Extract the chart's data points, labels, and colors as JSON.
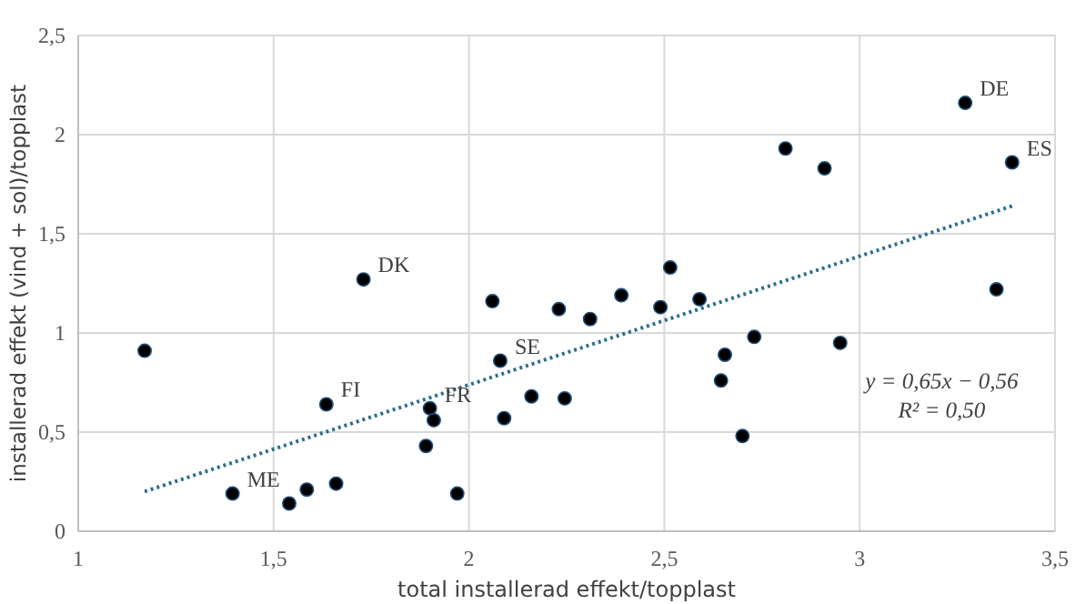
{
  "chart_data": {
    "type": "scatter",
    "xlabel": "total installerad effekt/topplast",
    "ylabel": "installerad effekt (vind + sol)/topplast",
    "xlim": [
      1,
      3.5
    ],
    "xticks": [
      1,
      {
        "value": 1.5,
        "label": "1,5"
      },
      2,
      {
        "value": 2.5,
        "label": "2,5"
      },
      3,
      {
        "value": 3.5,
        "label": "3,5"
      }
    ],
    "ylim": [
      0,
      2.5
    ],
    "yticks": [
      0,
      {
        "value": 0.5,
        "label": "0,5"
      },
      1,
      {
        "value": 1.5,
        "label": "1,5"
      },
      2,
      {
        "value": 2.5,
        "label": "2,5"
      }
    ],
    "grid": true,
    "series": [
      {
        "color": "#000000",
        "marker": "circle",
        "x": [
          1.17,
          1.73,
          2.06,
          2.23,
          2.08,
          1.635,
          1.9,
          1.91,
          1.89,
          1.395,
          1.54,
          1.585,
          1.66,
          1.97,
          2.16,
          2.245,
          2.09,
          2.31,
          2.39,
          2.49,
          2.59,
          2.515,
          2.73,
          2.655,
          2.645,
          2.7,
          2.95,
          3.35,
          2.81,
          2.91,
          3.27,
          3.39
        ],
        "values": [
          0.91,
          1.27,
          1.16,
          1.12,
          0.86,
          0.64,
          0.62,
          0.56,
          0.43,
          0.19,
          0.14,
          0.21,
          0.24,
          0.19,
          0.68,
          0.67,
          0.57,
          1.07,
          1.19,
          1.13,
          1.17,
          1.33,
          0.98,
          0.89,
          0.76,
          0.48,
          0.95,
          1.22,
          1.93,
          1.83,
          2.16,
          1.86
        ]
      },
      {
        "type": "line",
        "color": "#2e6e8e",
        "line_style": "dotted",
        "marker": "none",
        "x": [
          1.17,
          3.39
        ],
        "values": [
          0.2,
          1.64
        ]
      }
    ],
    "annotations": [
      {
        "text": "DE",
        "x": 3.27,
        "y": 2.16
      },
      {
        "text": "ES",
        "x": 3.39,
        "y": 1.86
      },
      {
        "text": "DK",
        "x": 1.73,
        "y": 1.27
      },
      {
        "text": "SE",
        "x": 2.08,
        "y": 0.86
      },
      {
        "text": "FI",
        "x": 1.635,
        "y": 0.64
      },
      {
        "text": "FR",
        "x": 1.9,
        "y": 0.615
      },
      {
        "text": "ME",
        "x": 1.395,
        "y": 0.19
      },
      "y = 0,65x − 0,56",
      "R² = 0,50"
    ]
  }
}
